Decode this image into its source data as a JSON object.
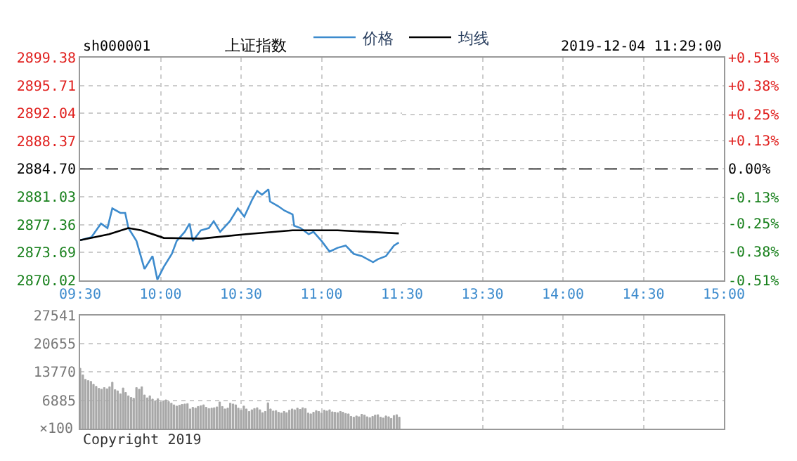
{
  "chart_data": [
    {
      "type": "line",
      "title": "上证指数",
      "annotations": [
        "sh000001"
      ],
      "legend": "top",
      "grid": true,
      "marker": "none",
      "line_style": "solid",
      "xlim": [
        9.5,
        11.5
      ],
      "xticks": [
        {
          "value": 9.5,
          "label": "09:30"
        },
        {
          "value": 10,
          "label": "10:00"
        },
        {
          "value": 10.5,
          "label": "10:30"
        },
        {
          "value": 11,
          "label": "11:00"
        },
        {
          "value": 11.5,
          "label": "11:30"
        }
      ],
      "ylim": [
        2870.02,
        2899.38
      ],
      "yticks": [
        2870.02,
        2873.69,
        2877.36,
        2881.03,
        {
          "value": 2884.7,
          "label": "2884.70"
        },
        2888.37,
        2892.04,
        2895.71,
        2899.38
      ],
      "ref_lines": [
        {
          "axis": "y",
          "value": 2884.7,
          "color": "#555555",
          "line_style": "dashed"
        }
      ],
      "series": [
        {
          "name": "价格",
          "color": "#3d8bcd",
          "x": [
            9.5,
            9.57,
            9.6,
            9.63,
            9.67,
            9.7,
            9.75,
            9.78,
            9.8,
            9.85,
            9.9,
            9.95,
            9.98,
            10.02,
            10.07,
            10.1,
            10.15,
            10.18,
            10.2,
            10.25,
            10.3,
            10.33,
            10.37,
            10.43,
            10.48,
            10.52,
            10.57,
            10.6,
            10.63,
            10.67,
            10.68,
            10.73,
            10.77,
            10.82,
            10.83,
            10.87,
            10.92,
            10.95,
            11,
            11.05,
            11.1,
            11.15,
            11.2,
            11.25,
            11.32,
            11.35,
            11.4,
            11.45,
            11.48
          ],
          "values": [
            2875.3,
            2875.7,
            2876.6,
            2877.5,
            2876.9,
            2879.5,
            2878.9,
            2878.9,
            2876.9,
            2875.2,
            2871.5,
            2873.2,
            2870.1,
            2871.8,
            2873.5,
            2875.2,
            2876.4,
            2877.5,
            2875.2,
            2876.6,
            2876.9,
            2877.8,
            2876.4,
            2877.8,
            2879.5,
            2878.4,
            2880.7,
            2881.8,
            2881.3,
            2882.0,
            2880.4,
            2879.8,
            2879.2,
            2878.7,
            2877.2,
            2876.9,
            2876.1,
            2876.4,
            2875.2,
            2873.8,
            2874.3,
            2874.6,
            2873.5,
            2873.2,
            2872.4,
            2872.8,
            2873.2,
            2874.6,
            2875.0
          ]
        },
        {
          "name": "均线",
          "color": "#000000",
          "x": [
            9.5,
            9.68,
            9.8,
            9.88,
            10.02,
            10.25,
            10.53,
            10.82,
            11.1,
            11.48
          ],
          "values": [
            2875.3,
            2876.1,
            2876.9,
            2876.6,
            2875.6,
            2875.5,
            2876.1,
            2876.6,
            2876.6,
            2876.2
          ]
        }
      ]
    },
    {
      "type": "line",
      "annotations": [
        "2019-12-04 11:29:00"
      ],
      "grid": true,
      "xlim": [
        13,
        15
      ],
      "xticks": [
        {
          "value": 13.5,
          "label": "13:30"
        },
        {
          "value": 14,
          "label": "14:00"
        },
        {
          "value": 14.5,
          "label": "14:30"
        },
        {
          "value": 15,
          "label": "15:00"
        }
      ],
      "ylim": [
        -0.51,
        0.51
      ],
      "yticks": [
        {
          "value": -0.51,
          "label": "-0.51%"
        },
        {
          "value": -0.38,
          "label": "-0.38%"
        },
        {
          "value": -0.25,
          "label": "-0.25%"
        },
        {
          "value": -0.13,
          "label": "-0.13%"
        },
        {
          "value": 0,
          "label": "0.00%"
        },
        {
          "value": 0.13,
          "label": "+0.13%"
        },
        {
          "value": 0.25,
          "label": "+0.25%"
        },
        {
          "value": 0.38,
          "label": "+0.38%"
        },
        {
          "value": 0.51,
          "label": "+0.51%"
        }
      ],
      "ref_lines": [
        {
          "axis": "y",
          "value": 0,
          "color": "#555555",
          "line_style": "dashed"
        }
      ]
    },
    {
      "type": "bar",
      "tick_labels": "y",
      "grid": true,
      "ylabel": "×100",
      "annotations": [
        "Copyright 2019"
      ],
      "xlim": [
        9.5,
        11.5
      ],
      "xticks": [
        9.5,
        10,
        10.5,
        11,
        11.5
      ],
      "ylim": [
        0,
        27541
      ],
      "yticks": [
        6885,
        13770,
        20655,
        27541
      ],
      "series": [
        {
          "color": "#a8a8a8",
          "x": [
            9.5,
            9.517,
            9.533,
            9.55,
            9.567,
            9.583,
            9.6,
            9.617,
            9.633,
            9.65,
            9.667,
            9.683,
            9.7,
            9.717,
            9.733,
            9.75,
            9.767,
            9.783,
            9.8,
            9.817,
            9.833,
            9.85,
            9.867,
            9.883,
            9.9,
            9.917,
            9.933,
            9.95,
            9.967,
            9.983,
            10,
            10.017,
            10.033,
            10.05,
            10.067,
            10.083,
            10.1,
            10.117,
            10.133,
            10.15,
            10.167,
            10.183,
            10.2,
            10.217,
            10.233,
            10.25,
            10.267,
            10.283,
            10.3,
            10.317,
            10.333,
            10.35,
            10.367,
            10.383,
            10.4,
            10.417,
            10.433,
            10.45,
            10.467,
            10.483,
            10.5,
            10.517,
            10.533,
            10.55,
            10.567,
            10.583,
            10.6,
            10.617,
            10.633,
            10.65,
            10.667,
            10.683,
            10.7,
            10.717,
            10.733,
            10.75,
            10.767,
            10.783,
            10.8,
            10.817,
            10.833,
            10.85,
            10.867,
            10.883,
            10.9,
            10.917,
            10.933,
            10.95,
            10.967,
            10.983,
            11,
            11.017,
            11.033,
            11.05,
            11.067,
            11.083,
            11.1,
            11.117,
            11.133,
            11.15,
            11.167,
            11.183,
            11.2,
            11.217,
            11.233,
            11.25,
            11.267,
            11.283,
            11.3,
            11.317,
            11.333,
            11.35,
            11.367,
            11.383,
            11.4,
            11.417,
            11.433,
            11.45,
            11.467,
            11.483
          ],
          "values": [
            14700,
            13100,
            12000,
            11700,
            11500,
            10800,
            10300,
            9800,
            9600,
            10000,
            9700,
            10200,
            11300,
            9500,
            9200,
            8500,
            9900,
            8800,
            8000,
            7600,
            7400,
            10000,
            9600,
            10200,
            8200,
            7500,
            8000,
            7200,
            6800,
            7300,
            6500,
            6800,
            7000,
            6600,
            6200,
            5800,
            5500,
            5700,
            5900,
            6000,
            6100,
            4800,
            5200,
            5000,
            5400,
            5600,
            5800,
            5200,
            4900,
            5000,
            5100,
            5300,
            6500,
            5400,
            4800,
            5000,
            6200,
            6000,
            5800,
            5000,
            4500,
            5500,
            4800,
            4200,
            4600,
            4900,
            5100,
            4600,
            3900,
            4200,
            6300,
            4800,
            4300,
            4400,
            4000,
            3800,
            4200,
            3900,
            4500,
            4800,
            4600,
            5000,
            4700,
            5100,
            4900,
            3800,
            3600,
            4000,
            4400,
            4200,
            3800,
            4500,
            4300,
            4600,
            4100,
            4000,
            3900,
            4200,
            4000,
            3700,
            3600,
            3000,
            2800,
            3100,
            2900,
            3500,
            3300,
            2900,
            2700,
            3000,
            3300,
            3400,
            2800,
            2600,
            3100,
            2900,
            2500,
            3200,
            3400,
            2800
          ]
        }
      ]
    },
    {
      "type": "bar",
      "tick_labels": false,
      "grid": true,
      "xlim": [
        13,
        15
      ],
      "xticks": [
        13.5,
        14,
        14.5,
        15
      ],
      "ylim": [
        0,
        27541
      ],
      "yticks": [
        6885,
        13770,
        20655,
        27541
      ]
    }
  ]
}
